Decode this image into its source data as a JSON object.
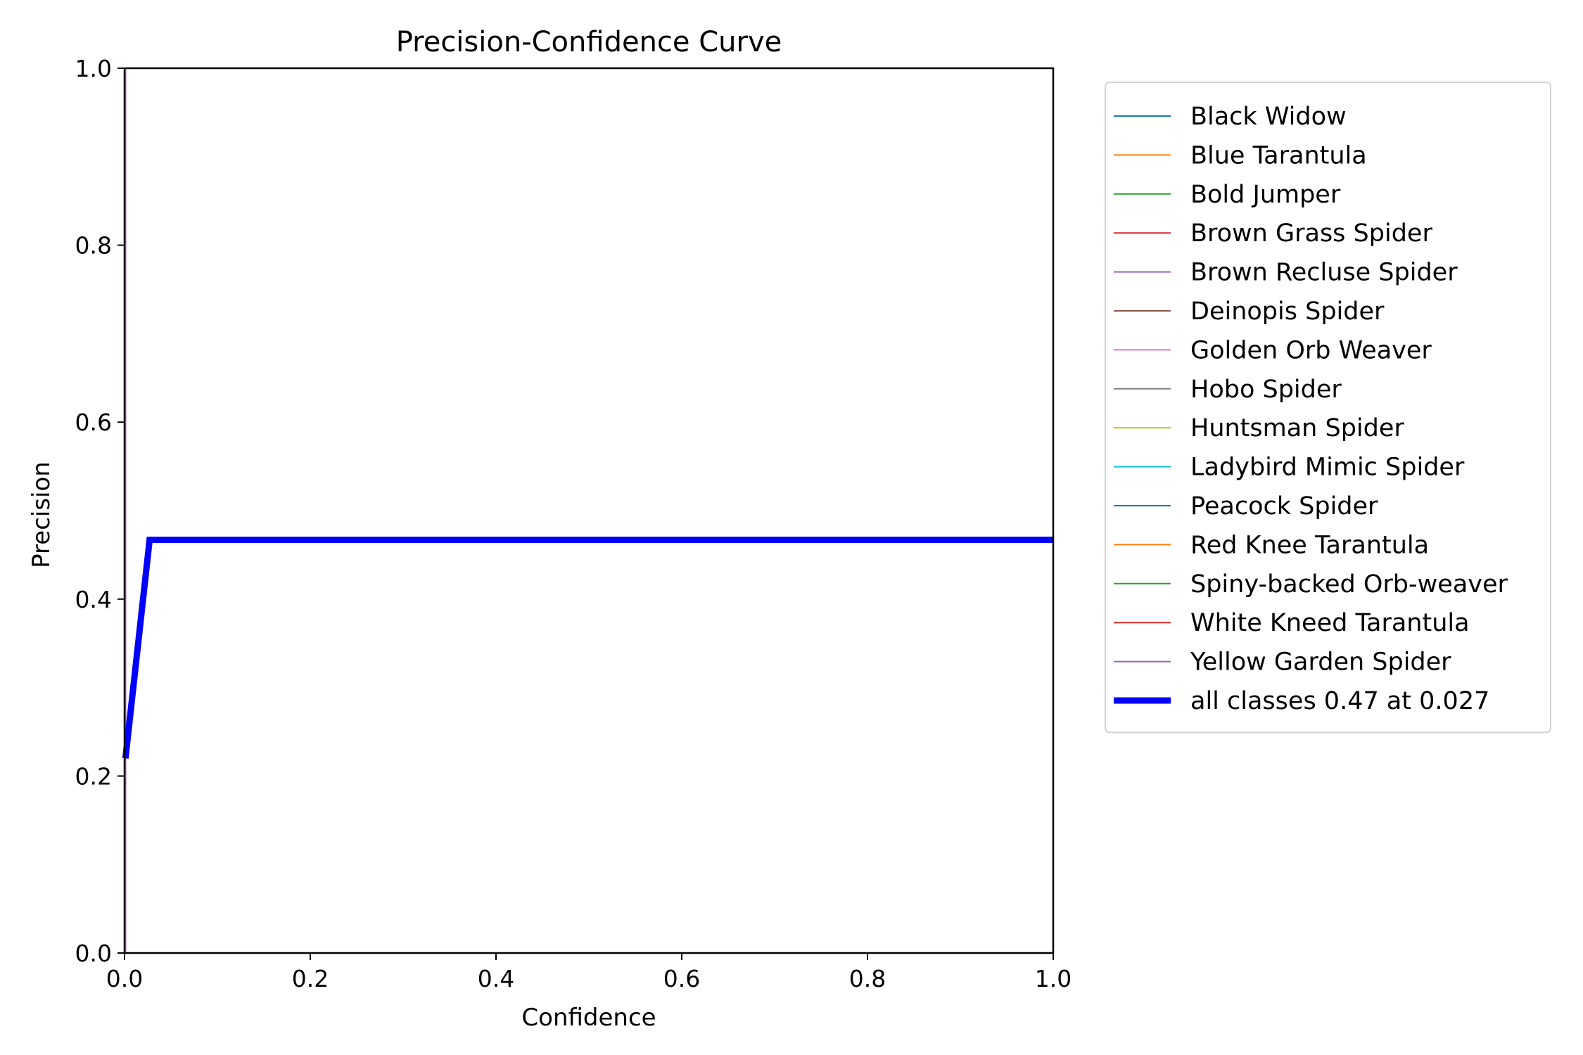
{
  "chart_data": {
    "type": "line",
    "title": "Precision-Confidence Curve",
    "xlabel": "Confidence",
    "ylabel": "Precision",
    "xlim": [
      0.0,
      1.0
    ],
    "ylim": [
      0.0,
      1.0
    ],
    "xticks": [
      "0.0",
      "0.2",
      "0.4",
      "0.6",
      "0.8",
      "1.0"
    ],
    "yticks": [
      "0.0",
      "0.2",
      "0.4",
      "0.6",
      "0.8",
      "1.0"
    ],
    "grid": false,
    "legend_position": "outside-right-top",
    "series": [
      {
        "name": "Black Widow",
        "color": "#1f77b4",
        "x": [
          0.0,
          0.001,
          1.0
        ],
        "y": [
          0.0,
          0.0,
          0.0
        ]
      },
      {
        "name": "Blue Tarantula",
        "color": "#ff7f0e",
        "x": [
          0.0,
          0.001,
          1.0
        ],
        "y": [
          0.0,
          0.0,
          0.0
        ]
      },
      {
        "name": "Bold Jumper",
        "color": "#2ca02c",
        "x": [
          0.0,
          0.001,
          1.0
        ],
        "y": [
          0.0,
          0.0,
          0.0
        ]
      },
      {
        "name": "Brown Grass Spider",
        "color": "#d62728",
        "x": [
          0.0,
          0.001,
          0.001,
          1.0
        ],
        "y": [
          0.0,
          0.0,
          1.0,
          1.0
        ]
      },
      {
        "name": "Brown Recluse Spider",
        "color": "#9467bd",
        "x": [
          0.0,
          0.001,
          0.001,
          1.0
        ],
        "y": [
          0.0,
          0.0,
          1.0,
          1.0
        ]
      },
      {
        "name": "Deinopis Spider",
        "color": "#8c564b",
        "x": [
          0.0,
          0.001,
          1.0
        ],
        "y": [
          0.0,
          0.0,
          0.0
        ]
      },
      {
        "name": "Golden Orb Weaver",
        "color": "#e377c2",
        "x": [
          0.0,
          0.001,
          0.001,
          1.0
        ],
        "y": [
          0.0,
          0.0,
          1.0,
          1.0
        ]
      },
      {
        "name": "Hobo Spider",
        "color": "#7f7f7f",
        "x": [
          0.0,
          0.001,
          1.0
        ],
        "y": [
          0.0,
          0.0,
          0.0
        ]
      },
      {
        "name": "Huntsman Spider",
        "color": "#bcbd22",
        "x": [
          0.0,
          0.001,
          1.0
        ],
        "y": [
          0.0,
          0.0,
          0.0
        ]
      },
      {
        "name": "Ladybird Mimic Spider",
        "color": "#17becf",
        "x": [
          0.0,
          0.001,
          1.0
        ],
        "y": [
          0.0,
          0.0,
          0.0
        ]
      },
      {
        "name": "Peacock Spider",
        "color": "#1f77b4",
        "x": [
          0.0,
          0.001,
          1.0
        ],
        "y": [
          0.0,
          0.0,
          0.0
        ]
      },
      {
        "name": "Red Knee Tarantula",
        "color": "#ff7f0e",
        "x": [
          0.0,
          0.001,
          1.0
        ],
        "y": [
          0.0,
          0.0,
          0.0
        ]
      },
      {
        "name": "Spiny-backed Orb-weaver",
        "color": "#2ca02c",
        "x": [
          0.0,
          0.001,
          1.0
        ],
        "y": [
          0.0,
          0.0,
          0.0
        ]
      },
      {
        "name": "White Kneed Tarantula",
        "color": "#d62728",
        "x": [
          0.0,
          0.001,
          1.0
        ],
        "y": [
          0.0,
          0.0,
          0.0
        ]
      },
      {
        "name": "Yellow Garden Spider",
        "color": "#9467bd",
        "x": [
          0.0,
          0.001,
          0.001,
          1.0
        ],
        "y": [
          0.0,
          0.0,
          1.0,
          1.0
        ]
      },
      {
        "name": "all classes 0.47 at 0.027",
        "color": "#0000ff",
        "bold": true,
        "x": [
          0.001,
          0.027,
          1.0
        ],
        "y": [
          0.22,
          0.467,
          0.467
        ]
      }
    ]
  }
}
